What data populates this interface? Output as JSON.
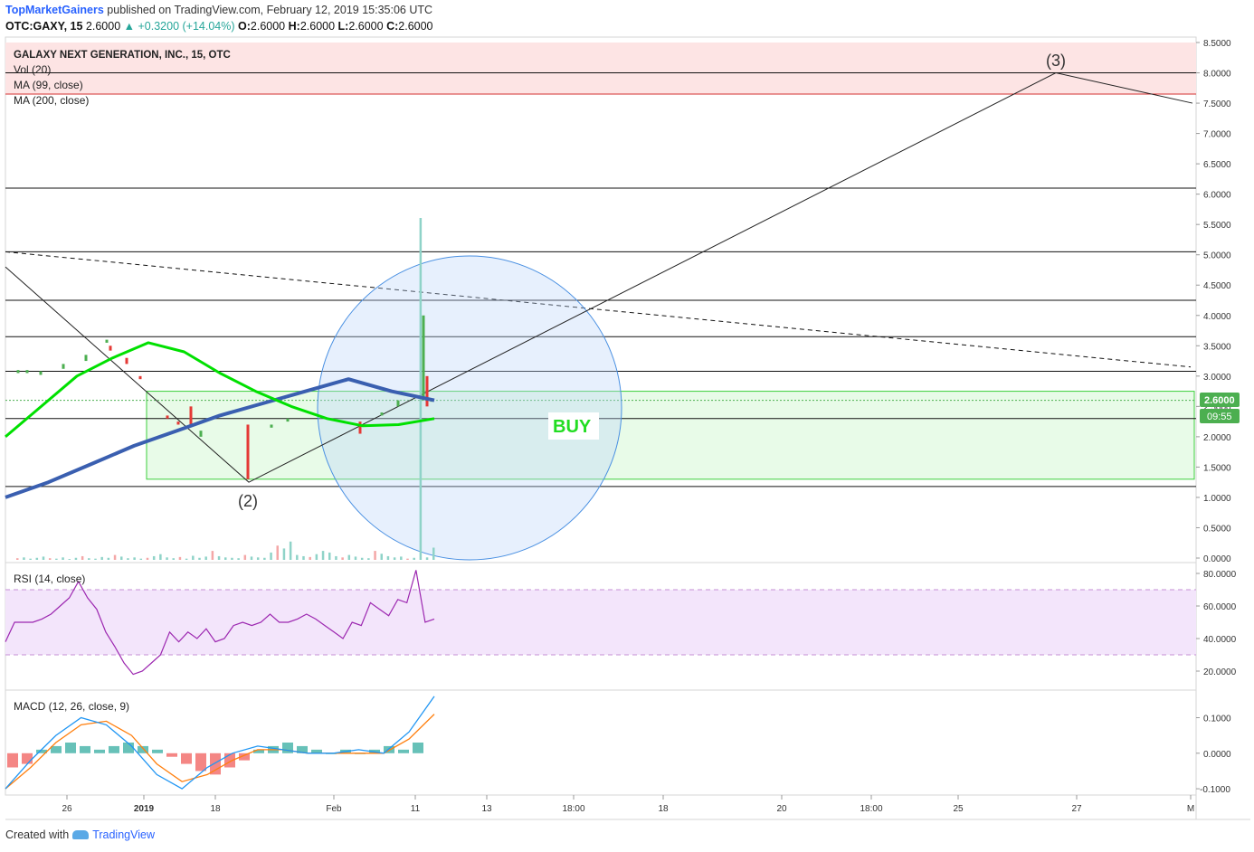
{
  "header": {
    "publisher": "TopMarketGainers",
    "published_text": " published on TradingView.com, February 12, 2019 15:35:06 UTC",
    "symbol": "OTC:GAXY, 15",
    "last": "2.6000",
    "change": "▲ +0.3200 (+14.04%)",
    "o_label": "O:",
    "o": "2.6000",
    "h_label": "H:",
    "h": "2.6000",
    "l_label": "L:",
    "l": "2.6000",
    "c_label": "C:",
    "c": "2.6000"
  },
  "legend": {
    "title": "GALAXY NEXT GENERATION, INC., 15, OTC",
    "vol": "Vol (20)",
    "ma99": "MA (99, close)",
    "ma200": "MA (200, close)"
  },
  "annotations": {
    "wave2": "(2)",
    "wave3": "(3)",
    "buy": "BUY"
  },
  "price_badge": {
    "price": "2.6000",
    "timer": "09:55"
  },
  "rsi_label": "RSI (14, close)",
  "macd_label": "MACD (12, 26, close, 9)",
  "footer": {
    "created_with": "Created with",
    "brand": "TradingView"
  },
  "colors": {
    "ma99": "#00e000",
    "ma200": "#3a5fb0",
    "rsi_line": "#9c27b0",
    "rsi_band": "#f3e5fb",
    "buy_zone": "#e8fbe8",
    "red_zone": "#fde4e4",
    "macd_line": "#2196f3",
    "signal_line": "#ff7f0e",
    "up": "#4caf50",
    "down": "#e53935"
  },
  "chart_data": [
    {
      "type": "line",
      "title": "GALAXY NEXT GENERATION, INC., 15, OTC",
      "y_axis_ticks": [
        "8.5000",
        "8.0000",
        "7.5000",
        "7.0000",
        "6.5000",
        "6.0000",
        "5.5000",
        "5.0000",
        "4.5000",
        "4.0000",
        "3.5000",
        "3.0000",
        "2.5000",
        "2.0000",
        "1.5000",
        "1.0000",
        "0.5000",
        "0.0000"
      ],
      "x_axis_ticks": [
        "26",
        "2019",
        "18",
        "Feb",
        "11",
        "13",
        "18:00",
        "18",
        "20",
        "18:00",
        "25",
        "27",
        "M"
      ],
      "ylim": [
        0,
        8.5
      ],
      "horizontal_levels": [
        8.0,
        7.65,
        6.1,
        5.05,
        4.25,
        3.65,
        3.08,
        2.3,
        1.18
      ],
      "buy_zone": [
        1.3,
        2.75
      ],
      "red_zone": [
        7.65,
        8.5
      ],
      "series": [
        {
          "name": "MA (99, close)",
          "values": [
            2.0,
            2.5,
            3.0,
            3.3,
            3.55,
            3.4,
            3.05,
            2.75,
            2.5,
            2.3,
            2.18,
            2.2,
            2.3
          ]
        },
        {
          "name": "MA (200, close)",
          "values": [
            1.0,
            1.25,
            1.55,
            1.85,
            2.1,
            2.35,
            2.55,
            2.75,
            2.95,
            2.75,
            2.6
          ]
        }
      ],
      "wave_path": [
        [
          0,
          4.8
        ],
        [
          0.2,
          1.25
        ],
        [
          0.63,
          8.0
        ],
        [
          1,
          7.5
        ]
      ],
      "trendline_dashed": [
        5.05,
        3.15
      ],
      "last_price": 2.6
    },
    {
      "type": "line",
      "title": "RSI (14, close)",
      "y_axis_ticks": [
        "80.0000",
        "60.0000",
        "40.0000",
        "20.0000"
      ],
      "ylim": [
        10,
        85
      ],
      "band": [
        30,
        70
      ],
      "values": [
        38,
        50,
        50,
        50,
        52,
        55,
        60,
        65,
        75,
        65,
        58,
        44,
        35,
        25,
        18,
        20,
        25,
        30,
        44,
        38,
        44,
        40,
        46,
        38,
        40,
        48,
        50,
        48,
        50,
        55,
        50,
        50,
        52,
        55,
        52,
        48,
        44,
        40,
        50,
        48,
        62,
        58,
        54,
        64,
        62,
        82,
        50,
        52
      ]
    },
    {
      "type": "line",
      "title": "MACD (12, 26, close, 9)",
      "y_axis_ticks": [
        "0.1000",
        "0.0000",
        "-0.1000"
      ],
      "ylim": [
        -0.11,
        0.17
      ],
      "series": [
        {
          "name": "MACD",
          "values": [
            -0.1,
            -0.02,
            0.05,
            0.1,
            0.08,
            0.02,
            -0.06,
            -0.1,
            -0.04,
            0.0,
            0.02,
            0.01,
            0.0,
            0.0,
            0.01,
            0.0,
            0.06,
            0.16
          ]
        },
        {
          "name": "Signal",
          "values": [
            -0.1,
            -0.04,
            0.03,
            0.08,
            0.09,
            0.05,
            -0.03,
            -0.08,
            -0.06,
            -0.02,
            0.01,
            0.01,
            0.0,
            0.0,
            0.0,
            0.0,
            0.04,
            0.11
          ]
        }
      ]
    }
  ]
}
